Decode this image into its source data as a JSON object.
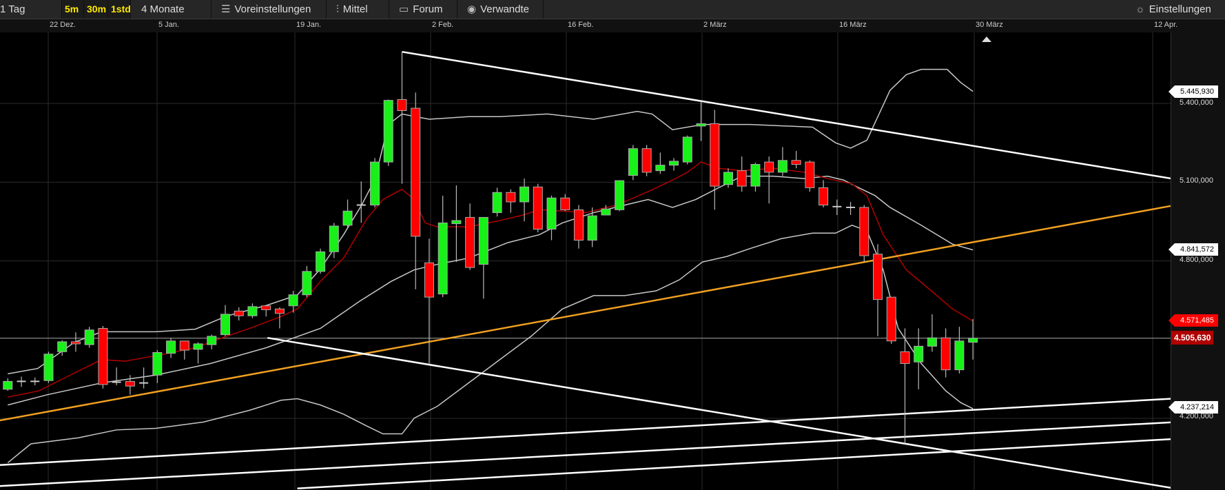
{
  "toolbar": {
    "interval": "1 Tag",
    "intraday": [
      "5m",
      "30m",
      "1std"
    ],
    "range": "4 Monate",
    "presets": "Voreinstellungen",
    "indicators": "Mittel",
    "forum": "Forum",
    "related": "Verwandte",
    "settings": "Einstellungen",
    "icons": {
      "presets": "sliders-icon",
      "indicators": "candlestick-icon",
      "forum": "speech-bubble-icon",
      "related": "eye-icon",
      "settings": "gear-icon"
    }
  },
  "date_ticks": [
    "22 Dez.",
    "5 Jan.",
    "19 Jan.",
    "2 Feb.",
    "16 Feb.",
    "2 März",
    "16 März",
    "30 März",
    "12 Apr."
  ],
  "price_ticks": [
    "5.400,000",
    "5.100,000",
    "4.800,000",
    "4.200,000"
  ],
  "price_tags": {
    "upper_band": "5.445,930",
    "middle_band": "4.841,572",
    "moving_average": "4.571,485",
    "current": "4.505,630",
    "lower_band": "4.237,214"
  },
  "colors": {
    "up": "#19f019",
    "down": "#ff0000",
    "ma": "#b00000",
    "band": "#c8c8c8",
    "trend_orange": "#f0a020",
    "trend_white": "#ffffff",
    "current_tag": "#b00000"
  },
  "chart_data": {
    "type": "candlestick",
    "ylim": [
      3.927,
      5.671
    ],
    "price_ticks": [
      5.4,
      5.1,
      4.8,
      4.2
    ],
    "current_price": 4.5056,
    "grid": true,
    "ohlc": [
      [
        4.311,
        4.353,
        4.305,
        4.341
      ],
      [
        4.341,
        4.359,
        4.32,
        4.341
      ],
      [
        4.341,
        4.356,
        4.326,
        4.341
      ],
      [
        4.344,
        4.454,
        4.335,
        4.445
      ],
      [
        4.454,
        4.498,
        4.439,
        4.492
      ],
      [
        4.492,
        4.528,
        4.454,
        4.484
      ],
      [
        4.481,
        4.549,
        4.469,
        4.537
      ],
      [
        4.543,
        4.552,
        4.314,
        4.329
      ],
      [
        4.338,
        4.394,
        4.326,
        4.338
      ],
      [
        4.341,
        4.365,
        4.29,
        4.323
      ],
      [
        4.335,
        4.394,
        4.314,
        4.335
      ],
      [
        4.365,
        4.46,
        4.335,
        4.451
      ],
      [
        4.448,
        4.507,
        4.43,
        4.495
      ],
      [
        4.495,
        4.495,
        4.424,
        4.46
      ],
      [
        4.463,
        4.49,
        4.409,
        4.484
      ],
      [
        4.481,
        4.519,
        4.463,
        4.513
      ],
      [
        4.519,
        4.632,
        4.513,
        4.597
      ],
      [
        4.609,
        4.623,
        4.573,
        4.591
      ],
      [
        4.591,
        4.638,
        4.582,
        4.626
      ],
      [
        4.629,
        4.632,
        4.588,
        4.614
      ],
      [
        4.617,
        4.623,
        4.543,
        4.6
      ],
      [
        4.629,
        4.686,
        4.603,
        4.671
      ],
      [
        4.671,
        4.781,
        4.662,
        4.76
      ],
      [
        4.76,
        4.847,
        4.751,
        4.835
      ],
      [
        4.835,
        4.945,
        4.811,
        4.933
      ],
      [
        4.936,
        5.034,
        4.924,
        4.99
      ],
      [
        5.013,
        5.103,
        4.945,
        5.013
      ],
      [
        5.013,
        5.192,
        5.004,
        5.177
      ],
      [
        5.177,
        5.415,
        5.162,
        5.412
      ],
      [
        5.415,
        5.597,
        5.094,
        5.373
      ],
      [
        5.382,
        5.442,
        4.692,
        4.894
      ],
      [
        4.793,
        4.885,
        4.409,
        4.662
      ],
      [
        4.674,
        5.049,
        4.662,
        4.945
      ],
      [
        4.942,
        5.088,
        4.796,
        4.954
      ],
      [
        4.966,
        5.019,
        4.766,
        4.775
      ],
      [
        4.787,
        4.966,
        4.656,
        4.966
      ],
      [
        4.984,
        5.079,
        4.969,
        5.061
      ],
      [
        5.061,
        5.073,
        4.984,
        5.025
      ],
      [
        5.025,
        5.114,
        4.951,
        5.082
      ],
      [
        5.082,
        5.094,
        4.909,
        4.921
      ],
      [
        4.921,
        5.049,
        4.879,
        5.04
      ],
      [
        5.04,
        5.055,
        4.99,
        4.995
      ],
      [
        4.995,
        5.013,
        4.847,
        4.879
      ],
      [
        4.879,
        5.004,
        4.853,
        4.972
      ],
      [
        4.975,
        5.013,
        4.975,
        4.998
      ],
      [
        4.995,
        5.108,
        4.99,
        5.106
      ],
      [
        5.126,
        5.242,
        5.108,
        5.228
      ],
      [
        5.228,
        5.242,
        5.123,
        5.138
      ],
      [
        5.144,
        5.213,
        5.132,
        5.165
      ],
      [
        5.165,
        5.192,
        5.144,
        5.18
      ],
      [
        5.177,
        5.278,
        5.168,
        5.272
      ],
      [
        5.314,
        5.409,
        5.257,
        5.323
      ],
      [
        5.323,
        5.376,
        4.995,
        5.085
      ],
      [
        5.091,
        5.153,
        5.079,
        5.138
      ],
      [
        5.144,
        5.198,
        5.064,
        5.085
      ],
      [
        5.085,
        5.174,
        5.064,
        5.168
      ],
      [
        5.177,
        5.198,
        5.019,
        5.138
      ],
      [
        5.138,
        5.234,
        5.123,
        5.183
      ],
      [
        5.183,
        5.219,
        5.153,
        5.168
      ],
      [
        5.177,
        5.183,
        5.064,
        5.079
      ],
      [
        5.079,
        5.108,
        5.004,
        5.013
      ],
      [
        5.007,
        5.034,
        4.975,
        5.007
      ],
      [
        5.004,
        5.025,
        4.975,
        5.004
      ],
      [
        5.004,
        5.013,
        4.796,
        4.82
      ],
      [
        4.826,
        4.864,
        4.513,
        4.653
      ],
      [
        4.662,
        4.662,
        4.484,
        4.495
      ],
      [
        4.454,
        4.543,
        4.103,
        4.409
      ],
      [
        4.415,
        4.543,
        4.311,
        4.475
      ],
      [
        4.475,
        4.597,
        4.454,
        4.507
      ],
      [
        4.507,
        4.543,
        4.356,
        4.385
      ],
      [
        4.385,
        4.549,
        4.371,
        4.495
      ],
      [
        4.49,
        4.579,
        4.424,
        4.5056
      ]
    ],
    "upper_band": [
      [
        0,
        4.37
      ],
      [
        2.2,
        4.39
      ],
      [
        4.9,
        4.49
      ],
      [
        6.9,
        4.53
      ],
      [
        10.9,
        4.53
      ],
      [
        13.8,
        4.54
      ],
      [
        16.1,
        4.59
      ],
      [
        19,
        4.63
      ],
      [
        21.3,
        4.67
      ],
      [
        23,
        4.77
      ],
      [
        24.7,
        4.9
      ],
      [
        26,
        5.01
      ],
      [
        27,
        5.11
      ],
      [
        28,
        5.32
      ],
      [
        29,
        5.36
      ],
      [
        31,
        5.34
      ],
      [
        33.9,
        5.35
      ],
      [
        36.2,
        5.35
      ],
      [
        39.7,
        5.36
      ],
      [
        43.1,
        5.34
      ],
      [
        46.3,
        5.37
      ],
      [
        47.4,
        5.36
      ],
      [
        48.9,
        5.3
      ],
      [
        51.1,
        5.32
      ],
      [
        54.6,
        5.32
      ],
      [
        59.2,
        5.31
      ],
      [
        60.9,
        5.25
      ],
      [
        62,
        5.23
      ],
      [
        63.2,
        5.26
      ],
      [
        64.9,
        5.45
      ],
      [
        66.1,
        5.51
      ],
      [
        67.2,
        5.53
      ],
      [
        69.1,
        5.53
      ],
      [
        70.1,
        5.48
      ],
      [
        71,
        5.446
      ]
    ],
    "middle_band": [
      [
        0,
        4.251
      ],
      [
        2.9,
        4.29
      ],
      [
        6.9,
        4.335
      ],
      [
        10.9,
        4.365
      ],
      [
        14.9,
        4.409
      ],
      [
        19,
        4.469
      ],
      [
        23,
        4.543
      ],
      [
        25.9,
        4.647
      ],
      [
        28.2,
        4.722
      ],
      [
        29.9,
        4.766
      ],
      [
        31.6,
        4.787
      ],
      [
        33.9,
        4.811
      ],
      [
        36.8,
        4.87
      ],
      [
        39.1,
        4.9
      ],
      [
        40.8,
        4.945
      ],
      [
        43.1,
        4.984
      ],
      [
        45.4,
        5.013
      ],
      [
        47.1,
        5.034
      ],
      [
        48.9,
        5.004
      ],
      [
        50.6,
        5.034
      ],
      [
        52.3,
        5.079
      ],
      [
        54,
        5.123
      ],
      [
        56.3,
        5.123
      ],
      [
        58.6,
        5.114
      ],
      [
        60.3,
        5.123
      ],
      [
        61.5,
        5.108
      ],
      [
        62.6,
        5.079
      ],
      [
        63.8,
        5.049
      ],
      [
        64.9,
        5.004
      ],
      [
        67.2,
        4.936
      ],
      [
        69.5,
        4.864
      ],
      [
        71,
        4.842
      ]
    ],
    "lower_band": [
      [
        0,
        4.031
      ],
      [
        1.7,
        4.103
      ],
      [
        5.2,
        4.126
      ],
      [
        8,
        4.156
      ],
      [
        10.9,
        4.162
      ],
      [
        14.4,
        4.186
      ],
      [
        17.8,
        4.231
      ],
      [
        20.1,
        4.269
      ],
      [
        21.3,
        4.275
      ],
      [
        23,
        4.251
      ],
      [
        24.7,
        4.216
      ],
      [
        26.4,
        4.171
      ],
      [
        27.6,
        4.141
      ],
      [
        29,
        4.141
      ],
      [
        29.9,
        4.201
      ],
      [
        31.6,
        4.246
      ],
      [
        33.9,
        4.335
      ],
      [
        36.2,
        4.424
      ],
      [
        38.5,
        4.513
      ],
      [
        40.8,
        4.617
      ],
      [
        43.1,
        4.668
      ],
      [
        45.4,
        4.668
      ],
      [
        47.7,
        4.686
      ],
      [
        49.4,
        4.728
      ],
      [
        51.1,
        4.796
      ],
      [
        52.9,
        4.817
      ],
      [
        54.6,
        4.847
      ],
      [
        56.9,
        4.885
      ],
      [
        59.2,
        4.906
      ],
      [
        60.9,
        4.906
      ],
      [
        62.1,
        4.936
      ],
      [
        63.2,
        4.915
      ],
      [
        64.4,
        4.766
      ],
      [
        65.5,
        4.543
      ],
      [
        67.2,
        4.409
      ],
      [
        69,
        4.305
      ],
      [
        70.1,
        4.26
      ],
      [
        71,
        4.237
      ]
    ],
    "moving_average": [
      [
        0,
        4.281
      ],
      [
        2.3,
        4.305
      ],
      [
        4.6,
        4.365
      ],
      [
        6.9,
        4.424
      ],
      [
        8.6,
        4.418
      ],
      [
        10.9,
        4.439
      ],
      [
        13.8,
        4.469
      ],
      [
        16.1,
        4.513
      ],
      [
        17.8,
        4.543
      ],
      [
        20.1,
        4.588
      ],
      [
        21.3,
        4.617
      ],
      [
        23,
        4.722
      ],
      [
        24.7,
        4.811
      ],
      [
        26.4,
        4.96
      ],
      [
        27.6,
        5.034
      ],
      [
        29,
        5.073
      ],
      [
        29.9,
        5.034
      ],
      [
        30.7,
        4.945
      ],
      [
        31.6,
        4.93
      ],
      [
        33.9,
        4.93
      ],
      [
        36.2,
        4.954
      ],
      [
        37.9,
        4.975
      ],
      [
        39.1,
        4.995
      ],
      [
        40.8,
        4.99
      ],
      [
        42.5,
        4.984
      ],
      [
        44.8,
        5.013
      ],
      [
        47.1,
        5.064
      ],
      [
        48.9,
        5.108
      ],
      [
        50,
        5.138
      ],
      [
        51,
        5.177
      ],
      [
        52.3,
        5.153
      ],
      [
        54,
        5.144
      ],
      [
        56.3,
        5.153
      ],
      [
        58.6,
        5.138
      ],
      [
        60.3,
        5.114
      ],
      [
        62.1,
        5.094
      ],
      [
        63.2,
        5.049
      ],
      [
        64.4,
        4.9
      ],
      [
        66.1,
        4.766
      ],
      [
        67.8,
        4.692
      ],
      [
        69.5,
        4.617
      ],
      [
        71,
        4.571
      ]
    ],
    "trendlines": [
      {
        "color": "white",
        "from": [
          29,
          5.597
        ],
        "to": [
          85.6,
          5.114
        ]
      },
      {
        "color": "orange",
        "from": [
          -0.6,
          4.192
        ],
        "to": [
          85.6,
          5.01
        ]
      },
      {
        "color": "white",
        "from": [
          19.1,
          4.507
        ],
        "to": [
          85.6,
          3.935
        ]
      },
      {
        "color": "white",
        "from": [
          -0.6,
          4.022
        ],
        "to": [
          85.6,
          4.275
        ]
      },
      {
        "color": "white",
        "from": [
          -0.6,
          3.942
        ],
        "to": [
          85.6,
          4.185
        ]
      },
      {
        "color": "white",
        "from": [
          21.3,
          3.933
        ],
        "to": [
          85.6,
          4.121
        ]
      }
    ]
  }
}
